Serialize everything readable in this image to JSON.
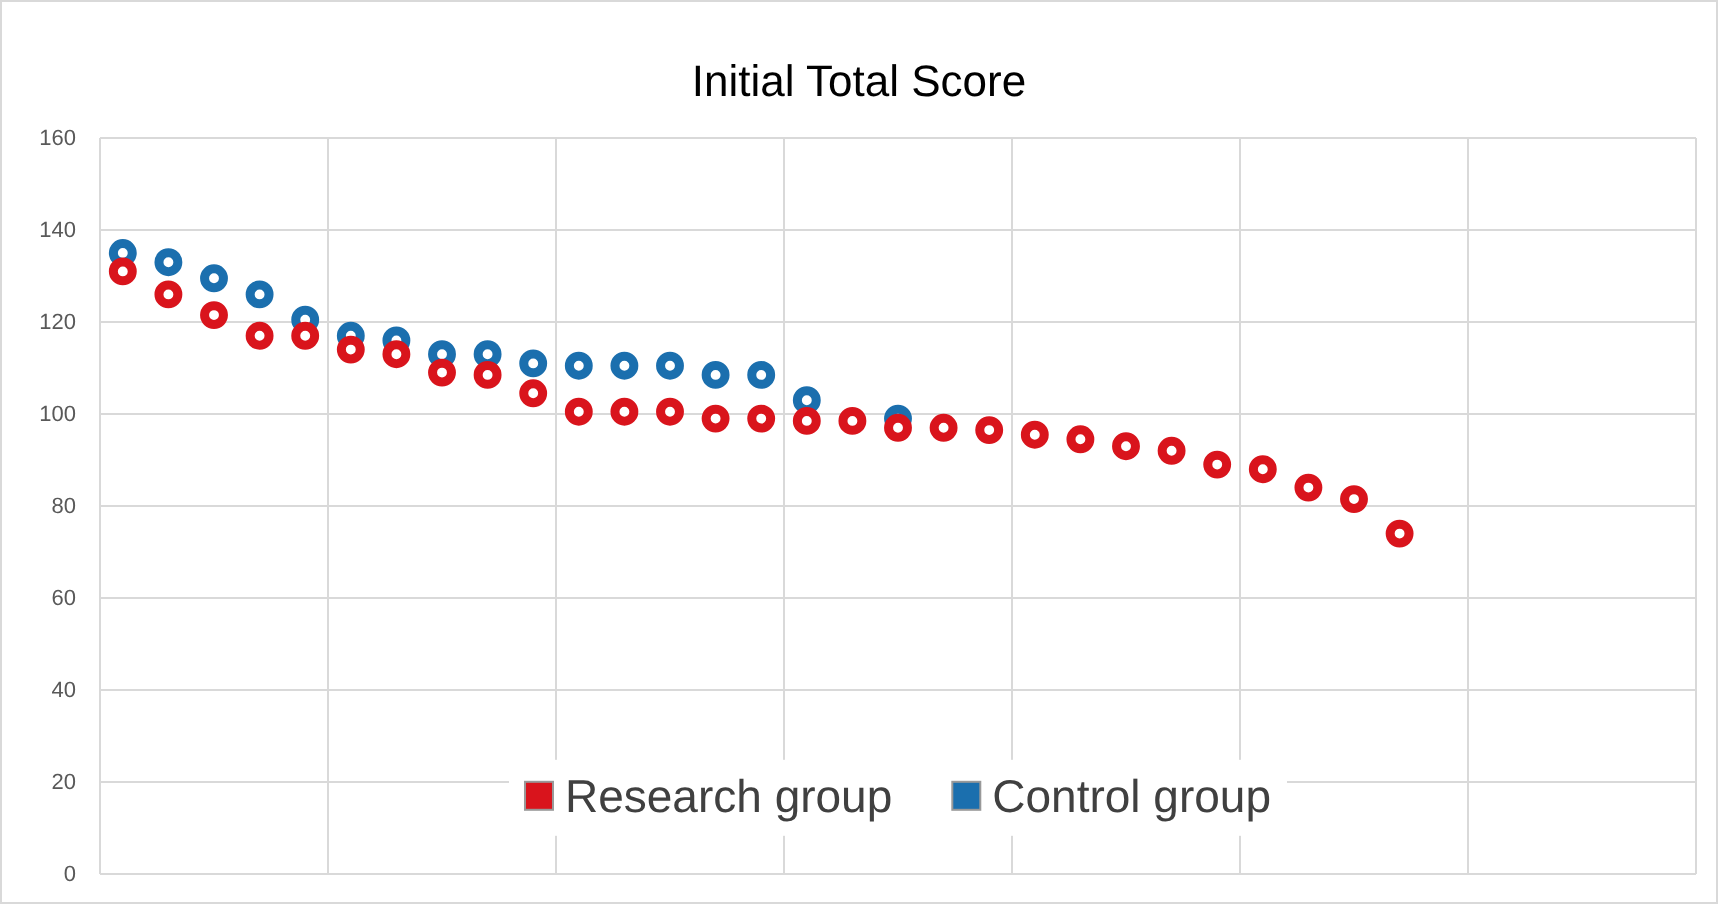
{
  "chart_data": {
    "type": "scatter",
    "title": "Initial Total Score",
    "categories": [
      null,
      null,
      null,
      null,
      null,
      null,
      null,
      null,
      null,
      null,
      null,
      null,
      null,
      null,
      null,
      null,
      null,
      null,
      null,
      null,
      null,
      null,
      null,
      null,
      null,
      null,
      null,
      null,
      null,
      null,
      null,
      null,
      null,
      null,
      null
    ],
    "series": [
      {
        "name": "Research group",
        "color": "#d9141c",
        "values": [
          131,
          126,
          121.5,
          117,
          117,
          114,
          113,
          109,
          108.5,
          104.5,
          100.5,
          100.5,
          100.5,
          99,
          99,
          98.5,
          98.5,
          97,
          97,
          96.5,
          95.5,
          94.5,
          93,
          92,
          89,
          88,
          84,
          81.5,
          74,
          null,
          null,
          null,
          null,
          null,
          null
        ]
      },
      {
        "name": "Control group",
        "color": "#1b6fae",
        "values": [
          135,
          133,
          129.5,
          126,
          120.5,
          117,
          116,
          113,
          113,
          111,
          110.5,
          110.5,
          110.5,
          108.5,
          108.5,
          103,
          null,
          99,
          null,
          null,
          null,
          null,
          null,
          null,
          null,
          null,
          null,
          null,
          null,
          null,
          null,
          null,
          null,
          null,
          null
        ]
      }
    ],
    "ylim": [
      0,
      160
    ],
    "yticks": [
      0,
      20,
      40,
      60,
      80,
      100,
      120,
      140,
      160
    ],
    "grid": true,
    "legend": "bottom",
    "marker": "circle"
  }
}
